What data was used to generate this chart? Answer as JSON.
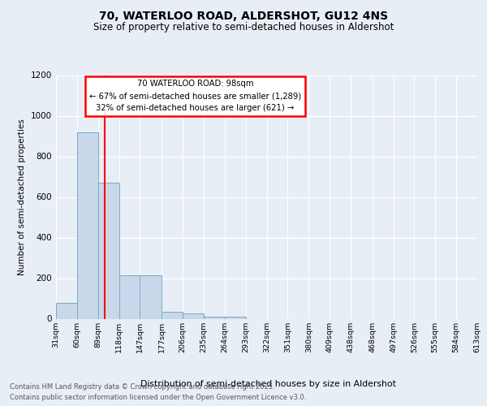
{
  "title1": "70, WATERLOO ROAD, ALDERSHOT, GU12 4NS",
  "title2": "Size of property relative to semi-detached houses in Aldershot",
  "xlabel": "Distribution of semi-detached houses by size in Aldershot",
  "ylabel": "Number of semi-detached properties",
  "bins": [
    "31sqm",
    "60sqm",
    "89sqm",
    "118sqm",
    "147sqm",
    "177sqm",
    "206sqm",
    "235sqm",
    "264sqm",
    "293sqm",
    "322sqm",
    "351sqm",
    "380sqm",
    "409sqm",
    "438sqm",
    "468sqm",
    "497sqm",
    "526sqm",
    "555sqm",
    "584sqm",
    "613sqm"
  ],
  "values": [
    80,
    920,
    670,
    215,
    215,
    35,
    25,
    12,
    10,
    0,
    0,
    0,
    0,
    0,
    0,
    0,
    0,
    0,
    0,
    0
  ],
  "bar_color": "#c8d8ea",
  "bar_edge_color": "#7aaac8",
  "property_line_x": 98,
  "property_line_color": "red",
  "annotation_title": "70 WATERLOO ROAD: 98sqm",
  "annotation_line1": "← 67% of semi-detached houses are smaller (1,289)",
  "annotation_line2": "32% of semi-detached houses are larger (621) →",
  "annotation_box_color": "white",
  "annotation_box_edge": "red",
  "ylim": [
    0,
    1200
  ],
  "yticks": [
    0,
    200,
    400,
    600,
    800,
    1000,
    1200
  ],
  "footer1": "Contains HM Land Registry data © Crown copyright and database right 2025.",
  "footer2": "Contains public sector information licensed under the Open Government Licence v3.0.",
  "bg_color": "#e8eef5",
  "plot_bg_color": "#e8eef5",
  "bin_edges": [
    31,
    60,
    89,
    118,
    147,
    177,
    206,
    235,
    264,
    293,
    322,
    351,
    380,
    409,
    438,
    468,
    497,
    526,
    555,
    584,
    613
  ]
}
